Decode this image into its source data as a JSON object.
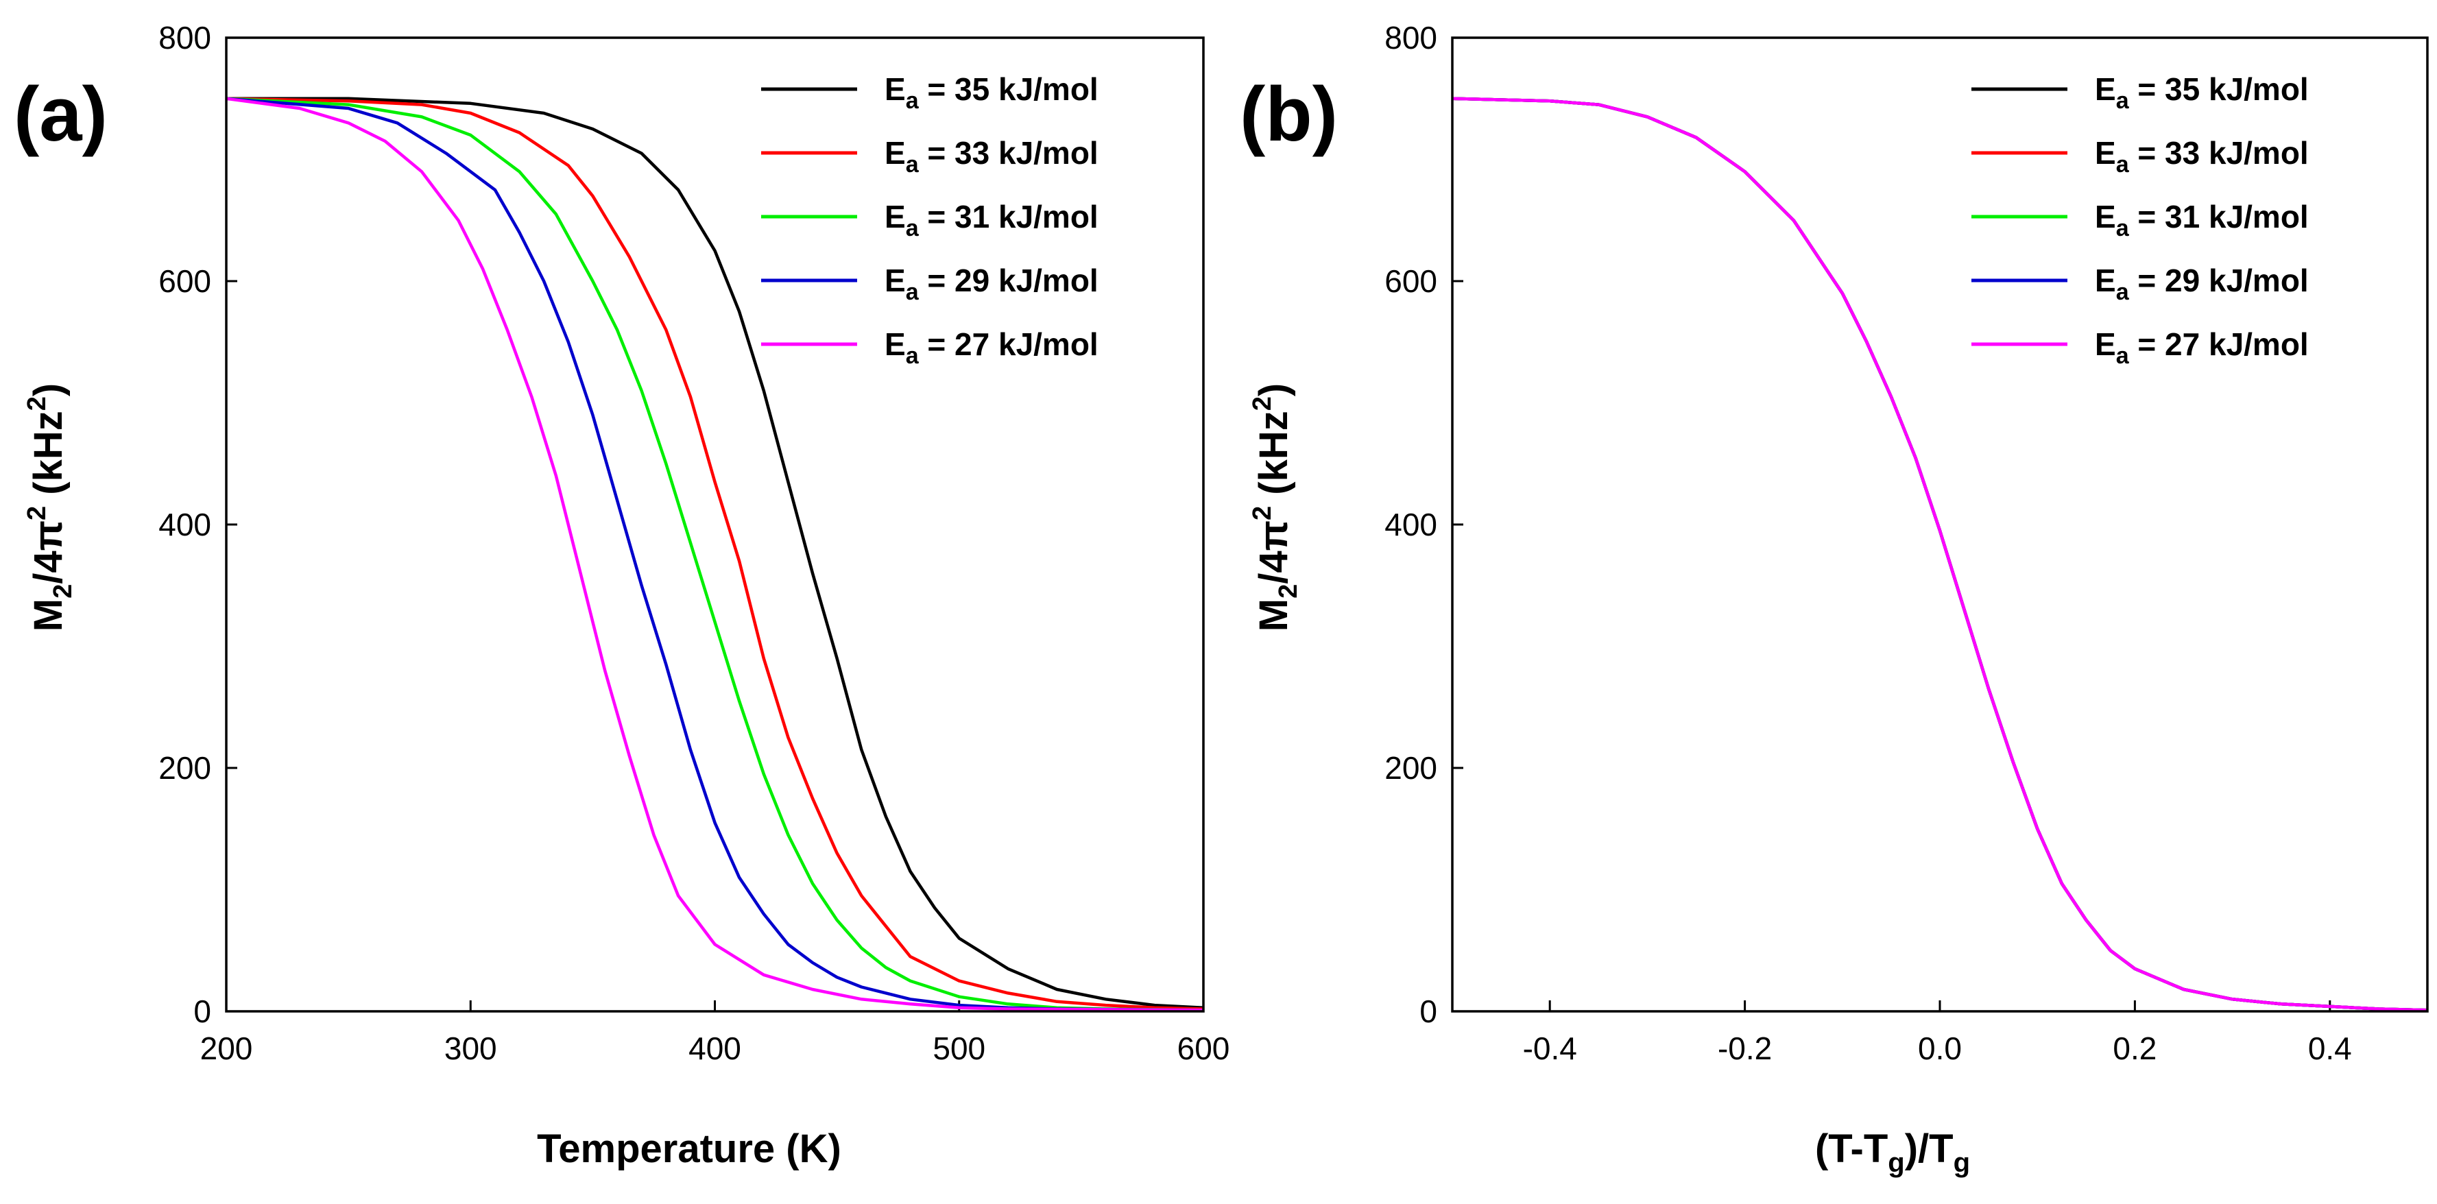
{
  "chart_data": [
    {
      "type": "line",
      "panel_label": "(a)",
      "xlabel": "Temperature (K)",
      "ylabel": "M2/4π2 (kHz2)",
      "ylabel_parts": {
        "main": "M",
        "sub1": "2",
        "mid": "/4π",
        "sup1": "2",
        "unit_open": " (kHz",
        "sup2": "2",
        "unit_close": ")"
      },
      "xlim": [
        200,
        600
      ],
      "ylim": [
        0,
        800
      ],
      "xticks": [
        200,
        300,
        400,
        500,
        600
      ],
      "xtick_labels": [
        "200",
        "300",
        "400",
        "500",
        "600"
      ],
      "yticks": [
        0,
        200,
        400,
        600,
        800
      ],
      "ytick_labels": [
        "0",
        "200",
        "400",
        "600",
        "800"
      ],
      "legend_position": "top-right",
      "series": [
        {
          "name": "Ea = 35 kJ/mol",
          "name_parts": {
            "main": "E",
            "sub": "a",
            "rest": " = 35 kJ/mol"
          },
          "color": "#000000",
          "x": [
            200,
            250,
            300,
            330,
            350,
            370,
            385,
            400,
            410,
            420,
            430,
            440,
            450,
            460,
            470,
            480,
            490,
            500,
            520,
            540,
            560,
            580,
            600
          ],
          "y": [
            750,
            750,
            746,
            738,
            725,
            705,
            675,
            625,
            575,
            510,
            435,
            360,
            290,
            215,
            160,
            115,
            85,
            60,
            35,
            18,
            10,
            5,
            3
          ]
        },
        {
          "name": "Ea = 33 kJ/mol",
          "name_parts": {
            "main": "E",
            "sub": "a",
            "rest": " = 33 kJ/mol"
          },
          "color": "#ff0000",
          "x": [
            200,
            250,
            280,
            300,
            320,
            340,
            350,
            365,
            380,
            390,
            400,
            410,
            420,
            430,
            440,
            450,
            460,
            470,
            480,
            500,
            520,
            540,
            560,
            580,
            600
          ],
          "y": [
            750,
            748,
            745,
            738,
            722,
            695,
            670,
            620,
            560,
            505,
            435,
            370,
            290,
            225,
            175,
            130,
            95,
            70,
            45,
            25,
            15,
            8,
            5,
            3,
            2
          ]
        },
        {
          "name": "Ea = 31 kJ/mol",
          "name_parts": {
            "main": "E",
            "sub": "a",
            "rest": " = 31 kJ/mol"
          },
          "color": "#00ee00",
          "x": [
            200,
            250,
            280,
            300,
            320,
            335,
            350,
            360,
            370,
            380,
            390,
            400,
            410,
            420,
            430,
            440,
            450,
            460,
            470,
            480,
            500,
            520,
            540,
            560,
            600
          ],
          "y": [
            750,
            745,
            735,
            720,
            690,
            655,
            600,
            560,
            510,
            450,
            385,
            320,
            255,
            195,
            145,
            105,
            75,
            52,
            36,
            25,
            12,
            6,
            3,
            2,
            1
          ]
        },
        {
          "name": "Ea = 29 kJ/mol",
          "name_parts": {
            "main": "E",
            "sub": "a",
            "rest": " = 29 kJ/mol"
          },
          "color": "#0000cc",
          "x": [
            200,
            250,
            270,
            290,
            310,
            320,
            330,
            340,
            350,
            360,
            370,
            380,
            390,
            400,
            410,
            420,
            430,
            440,
            450,
            460,
            480,
            500,
            520,
            540,
            600
          ],
          "y": [
            750,
            742,
            730,
            705,
            675,
            640,
            600,
            550,
            490,
            420,
            350,
            285,
            215,
            155,
            110,
            80,
            55,
            40,
            28,
            20,
            10,
            5,
            3,
            2,
            1
          ]
        },
        {
          "name": "Ea = 27 kJ/mol",
          "name_parts": {
            "main": "E",
            "sub": "a",
            "rest": " = 27 kJ/mol"
          },
          "color": "#ff00ff",
          "x": [
            200,
            230,
            250,
            265,
            280,
            295,
            305,
            315,
            325,
            335,
            345,
            355,
            365,
            375,
            385,
            400,
            420,
            440,
            460,
            480,
            500,
            520,
            600
          ],
          "y": [
            750,
            742,
            730,
            715,
            690,
            650,
            610,
            560,
            505,
            440,
            360,
            280,
            210,
            145,
            95,
            55,
            30,
            18,
            10,
            6,
            3,
            2,
            1
          ]
        }
      ]
    },
    {
      "type": "line",
      "panel_label": "(b)",
      "xlabel": "(T-Tg)/Tg",
      "xlabel_parts": {
        "p1": "(T-T",
        "sub1": "g",
        "p2": ")/T",
        "sub2": "g"
      },
      "ylabel": "M2/4π2 (kHz2)",
      "ylabel_parts": {
        "main": "M",
        "sub1": "2",
        "mid": "/4π",
        "sup1": "2",
        "unit_open": " (kHz",
        "sup2": "2",
        "unit_close": ")"
      },
      "xlim": [
        -0.5,
        0.5
      ],
      "ylim": [
        0,
        800
      ],
      "xticks": [
        -0.4,
        -0.2,
        0.0,
        0.2,
        0.4
      ],
      "xtick_labels": [
        "-0.4",
        "-0.2",
        "0.0",
        "0.2",
        "0.4"
      ],
      "yticks": [
        0,
        200,
        400,
        600,
        800
      ],
      "ytick_labels": [
        "0",
        "200",
        "400",
        "600",
        "800"
      ],
      "legend_position": "top-right",
      "shared_curve": {
        "x": [
          -0.5,
          -0.45,
          -0.4,
          -0.35,
          -0.3,
          -0.25,
          -0.2,
          -0.15,
          -0.1,
          -0.075,
          -0.05,
          -0.025,
          0.0,
          0.025,
          0.05,
          0.075,
          0.1,
          0.125,
          0.15,
          0.175,
          0.2,
          0.25,
          0.3,
          0.35,
          0.4,
          0.45,
          0.5
        ],
        "y": [
          750,
          749,
          748,
          745,
          735,
          718,
          690,
          650,
          590,
          550,
          505,
          455,
          395,
          330,
          265,
          205,
          150,
          105,
          75,
          50,
          35,
          18,
          10,
          6,
          4,
          2,
          1
        ]
      },
      "series": [
        {
          "name": "Ea = 35 kJ/mol",
          "name_parts": {
            "main": "E",
            "sub": "a",
            "rest": " = 35 kJ/mol"
          },
          "color": "#000000"
        },
        {
          "name": "Ea = 33 kJ/mol",
          "name_parts": {
            "main": "E",
            "sub": "a",
            "rest": " = 33 kJ/mol"
          },
          "color": "#ff0000"
        },
        {
          "name": "Ea = 31 kJ/mol",
          "name_parts": {
            "main": "E",
            "sub": "a",
            "rest": " = 31 kJ/mol"
          },
          "color": "#00ee00"
        },
        {
          "name": "Ea = 29 kJ/mol",
          "name_parts": {
            "main": "E",
            "sub": "a",
            "rest": " = 29 kJ/mol"
          },
          "color": "#0000cc"
        },
        {
          "name": "Ea = 27 kJ/mol",
          "name_parts": {
            "main": "E",
            "sub": "a",
            "rest": " = 27 kJ/mol"
          },
          "color": "#ff00ff"
        }
      ]
    }
  ]
}
